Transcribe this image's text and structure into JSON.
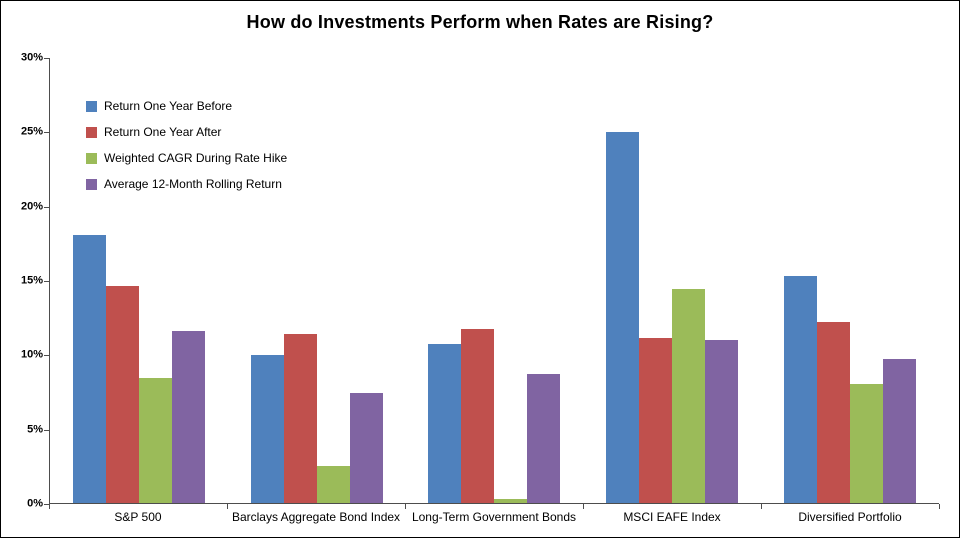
{
  "chart_data": {
    "type": "bar",
    "title": "How do Investments Perform when Rates are Rising?",
    "categories": [
      "S&P 500",
      "Barclays Aggregate Bond Index",
      "Long-Term Government Bonds",
      "MSCI EAFE Index",
      "Diversified Portfolio"
    ],
    "series": [
      {
        "name": "Return One Year Before",
        "color": "#4F81BD",
        "values": [
          18.1,
          10.0,
          10.7,
          25.0,
          15.3
        ]
      },
      {
        "name": "Return One Year After",
        "color": "#C0504D",
        "values": [
          14.6,
          11.4,
          11.7,
          11.1,
          12.2
        ]
      },
      {
        "name": "Weighted CAGR During Rate Hike",
        "color": "#9BBB59",
        "values": [
          8.4,
          2.5,
          0.3,
          14.4,
          8.0
        ]
      },
      {
        "name": "Average 12-Month Rolling Return",
        "color": "#8064A2",
        "values": [
          11.6,
          7.4,
          8.7,
          11.0,
          9.7
        ]
      }
    ],
    "xlabel": "",
    "ylabel": "",
    "ylim": [
      0,
      30
    ],
    "ytick_step": 5,
    "ytick_suffix": "%",
    "grid": false,
    "legend_position": "top-left"
  }
}
